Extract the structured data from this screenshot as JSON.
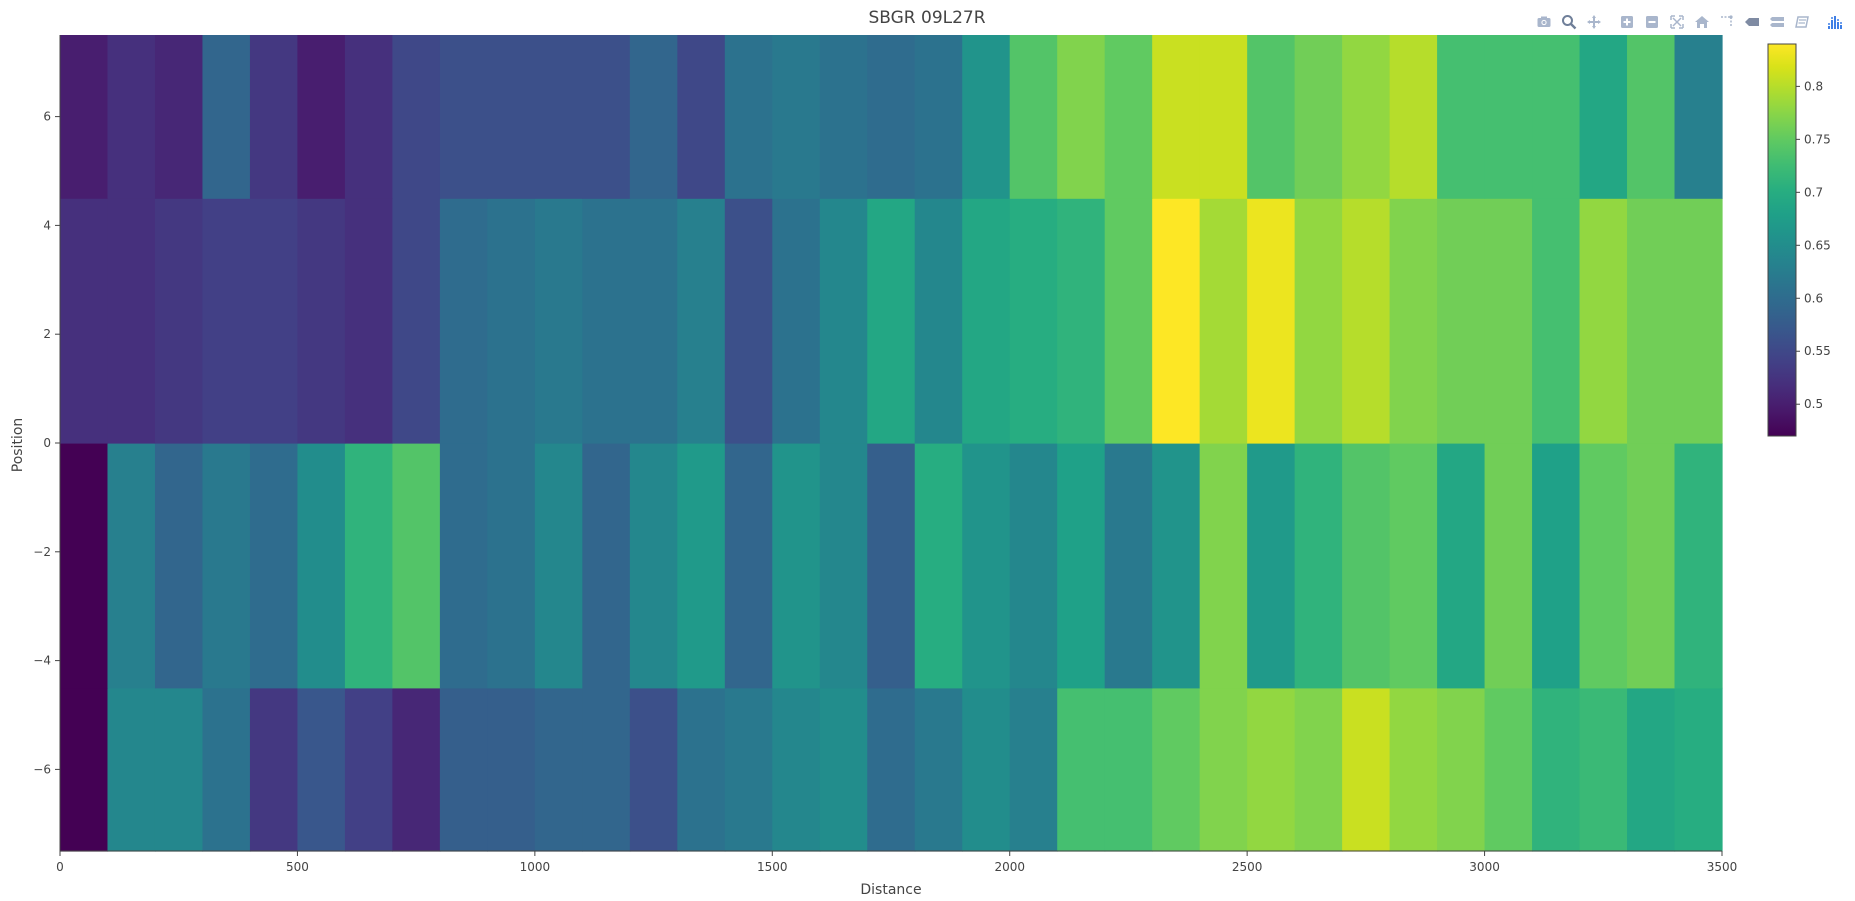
{
  "chart_data": {
    "type": "heatmap",
    "title": "SBGR 09L27R",
    "xlabel": "Distance",
    "ylabel": "Position",
    "xlim": [
      0,
      3500
    ],
    "ylim": [
      -7.5,
      7.5
    ],
    "x_ticks": [
      0,
      500,
      1000,
      1500,
      2000,
      2500,
      3000,
      3500
    ],
    "y_ticks": [
      -6,
      -4,
      -2,
      0,
      2,
      4,
      6
    ],
    "x_tick_labels": [
      "0",
      "500",
      "1000",
      "1500",
      "2000",
      "2500",
      "3000",
      "3500"
    ],
    "y_tick_labels": [
      "−6",
      "−4",
      "−2",
      "0",
      "2",
      "4",
      "6"
    ],
    "x_step": 100,
    "y_bands": [
      {
        "y0": -7.5,
        "y1": -4.5
      },
      {
        "y0": -4.5,
        "y1": 0
      },
      {
        "y0": 0,
        "y1": 4.5
      },
      {
        "y0": 4.5,
        "y1": 7.5
      }
    ],
    "z": [
      [
        0.47,
        0.64,
        0.64,
        0.61,
        0.53,
        0.57,
        0.54,
        0.51,
        0.58,
        0.58,
        0.59,
        0.59,
        0.56,
        0.61,
        0.62,
        0.64,
        0.65,
        0.6,
        0.62,
        0.65,
        0.63,
        0.73,
        0.73,
        0.75,
        0.77,
        0.78,
        0.77,
        0.81,
        0.78,
        0.77,
        0.75,
        0.71,
        0.72,
        0.69,
        0.7
      ],
      [
        0.47,
        0.63,
        0.59,
        0.62,
        0.6,
        0.65,
        0.71,
        0.74,
        0.6,
        0.61,
        0.64,
        0.59,
        0.64,
        0.67,
        0.59,
        0.66,
        0.64,
        0.58,
        0.7,
        0.66,
        0.64,
        0.68,
        0.62,
        0.66,
        0.77,
        0.67,
        0.71,
        0.74,
        0.75,
        0.69,
        0.76,
        0.68,
        0.75,
        0.76,
        0.71
      ],
      [
        0.52,
        0.52,
        0.53,
        0.54,
        0.54,
        0.53,
        0.52,
        0.55,
        0.6,
        0.61,
        0.62,
        0.61,
        0.61,
        0.63,
        0.56,
        0.61,
        0.64,
        0.69,
        0.64,
        0.69,
        0.7,
        0.71,
        0.75,
        0.84,
        0.79,
        0.83,
        0.78,
        0.8,
        0.77,
        0.76,
        0.76,
        0.73,
        0.78,
        0.76,
        0.76
      ],
      [
        0.5,
        0.52,
        0.51,
        0.59,
        0.53,
        0.5,
        0.52,
        0.55,
        0.56,
        0.56,
        0.56,
        0.56,
        0.59,
        0.55,
        0.61,
        0.62,
        0.61,
        0.6,
        0.61,
        0.66,
        0.74,
        0.77,
        0.75,
        0.81,
        0.81,
        0.74,
        0.76,
        0.78,
        0.8,
        0.73,
        0.73,
        0.73,
        0.69,
        0.74,
        0.63
      ]
    ],
    "colorscale": "Viridis",
    "zmin": 0.47,
    "zmax": 0.84,
    "colorbar_ticks": [
      0.5,
      0.55,
      0.6,
      0.65,
      0.7,
      0.75,
      0.8
    ],
    "colorbar_tick_labels": [
      "0.5",
      "0.55",
      "0.6",
      "0.65",
      "0.7",
      "0.75",
      "0.8"
    ],
    "legend": "colorbar-right"
  },
  "modebar": {
    "buttons": [
      {
        "name": "camera-icon"
      },
      {
        "name": "zoom-icon"
      },
      {
        "name": "pan-icon"
      },
      {
        "name": "zoom-in-icon"
      },
      {
        "name": "zoom-out-icon"
      },
      {
        "name": "autoscale-icon"
      },
      {
        "name": "home-icon"
      },
      {
        "name": "spike-lines-icon"
      },
      {
        "name": "hover-closest-icon"
      },
      {
        "name": "hover-compare-icon"
      },
      {
        "name": "edit-icon"
      },
      {
        "name": "plotly-logo-icon"
      }
    ]
  }
}
